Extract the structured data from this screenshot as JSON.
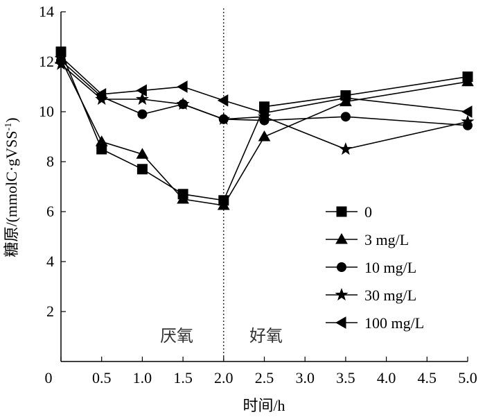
{
  "chart_data": {
    "type": "line",
    "xlabel": "时间/h",
    "ylabel": "糖原/(mmolC·gVSS",
    "ylabel_sup": "-1",
    "ylabel_close": ")",
    "xlim": [
      0,
      5.0
    ],
    "ylim": [
      0,
      14
    ],
    "x_ticks": [
      "0",
      "0.5",
      "1.0",
      "1.5",
      "2.0",
      "2.5",
      "3.0",
      "3.5",
      "4.0",
      "4.5",
      "5.0"
    ],
    "y_ticks": [
      "2",
      "4",
      "6",
      "8",
      "10",
      "12",
      "14"
    ],
    "grid": false,
    "legend_position": "bottom-right",
    "divider_x": 2.0,
    "phase_labels": {
      "anaerobic": "厌氧",
      "aerobic": "好氧"
    },
    "series": [
      {
        "name": "0",
        "marker": "square",
        "x": [
          0,
          0.5,
          1.0,
          1.5,
          2.0,
          2.5,
          3.5,
          5.0
        ],
        "y": [
          12.4,
          8.5,
          7.7,
          6.7,
          6.45,
          10.2,
          10.65,
          11.4
        ]
      },
      {
        "name": "3 mg/L",
        "marker": "triangle",
        "x": [
          0,
          0.5,
          1.0,
          1.5,
          2.0,
          2.5,
          3.5,
          5.0
        ],
        "y": [
          12.1,
          8.8,
          8.3,
          6.5,
          6.25,
          9.0,
          10.4,
          11.2
        ]
      },
      {
        "name": "10 mg/L",
        "marker": "circle",
        "x": [
          0,
          0.5,
          1.0,
          1.5,
          2.0,
          2.5,
          3.5,
          5.0
        ],
        "y": [
          12.05,
          10.6,
          9.9,
          10.3,
          9.7,
          9.65,
          9.8,
          9.45
        ]
      },
      {
        "name": "30 mg/L",
        "marker": "star",
        "x": [
          0,
          0.5,
          1.0,
          1.5,
          2.0,
          2.5,
          3.5,
          5.0
        ],
        "y": [
          11.9,
          10.5,
          10.5,
          10.3,
          9.7,
          9.8,
          8.5,
          9.6
        ]
      },
      {
        "name": "100 mg/L",
        "marker": "left-triangle",
        "x": [
          0,
          0.5,
          1.0,
          1.5,
          2.0,
          2.5,
          3.5,
          5.0
        ],
        "y": [
          12.2,
          10.7,
          10.85,
          11.0,
          10.45,
          9.95,
          10.55,
          10.0
        ]
      }
    ]
  }
}
